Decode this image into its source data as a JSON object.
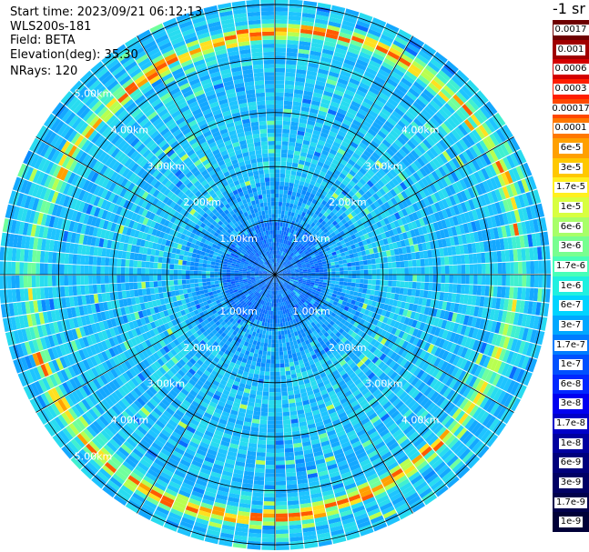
{
  "header": {
    "start_time": "Start time: 2023/09/21 06:12:13",
    "device": "WLS200s-181",
    "field": "Field: BETA",
    "elevation": "Elevation(deg): 35.30",
    "nrays": "NRays: 120"
  },
  "colorbar": {
    "unit_label": "-1 sr",
    "levels": [
      "0.0017",
      "0.001",
      "0.0006",
      "0.0003",
      "0.00017",
      "0.0001",
      "6e-5",
      "3e-5",
      "1.7e-5",
      "1e-5",
      "6e-6",
      "3e-6",
      "1.7e-6",
      "1e-6",
      "6e-7",
      "3e-7",
      "1.7e-7",
      "1e-7",
      "6e-8",
      "3e-8",
      "1.7e-8",
      "1e-8",
      "6e-9",
      "3e-9",
      "1.7e-9",
      "1e-9"
    ],
    "colors": [
      "#6e0000",
      "#a00000",
      "#d40000",
      "#ff1e00",
      "#ff4800",
      "#ff7800",
      "#ffa000",
      "#ffc800",
      "#fff020",
      "#d8ff40",
      "#a8ff68",
      "#78ff90",
      "#48ffb8",
      "#20f0e0",
      "#00d4ff",
      "#00a8ff",
      "#007cff",
      "#0050ff",
      "#0028ff",
      "#0000f0",
      "#0000c8",
      "#0000a0",
      "#00007c",
      "#000064",
      "#00004c",
      "#000038"
    ]
  },
  "chart_data": {
    "type": "polar-ppi",
    "field": "BETA",
    "elevation_deg": 35.3,
    "n_rays": 120,
    "range_rings_km": [
      1.0,
      2.0,
      3.0,
      4.0,
      5.0
    ],
    "ring_labels": [
      "1.00km",
      "2.00km",
      "3.00km",
      "4.00km",
      "5.00km"
    ],
    "max_range_km": 5.1,
    "spoke_angles_deg": [
      0,
      30,
      60,
      90,
      120,
      150
    ],
    "grid": true
  }
}
